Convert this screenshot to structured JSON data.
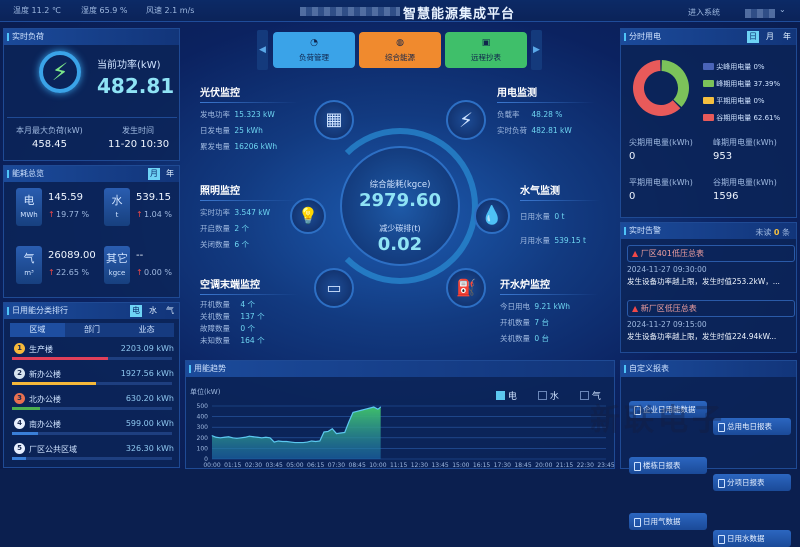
{
  "topbar": {
    "temp": "温度 11.2 ℃",
    "humidity": "湿度 65.9 %",
    "wind": "风速 2.1 m/s",
    "title": "智慧能源集成平台",
    "enter": "进入系统"
  },
  "realtime_load": {
    "title": "实时负荷",
    "power_label": "当前功率(kW)",
    "power": "482.81",
    "max_label": "本月最大负荷(kW)",
    "max": "458.45",
    "time_label": "发生时间",
    "time": "11-20 10:30"
  },
  "overview": {
    "title": "能耗总览",
    "toggles": [
      "月",
      "年"
    ],
    "active": "月",
    "items": [
      {
        "name": "电",
        "unit": "MWh",
        "value": "145.59",
        "change": "19.77 %"
      },
      {
        "name": "水",
        "unit": "t",
        "value": "539.15",
        "change": "1.04 %"
      },
      {
        "name": "气",
        "unit": "m³",
        "value": "26089.00",
        "change": "22.65 %"
      },
      {
        "name": "其它",
        "unit": "kgce",
        "value": "--",
        "change": "0.00 %"
      }
    ]
  },
  "ranking": {
    "title": "日用能分类排行",
    "toggles": [
      "电",
      "水",
      "气"
    ],
    "active": "电",
    "tabs": [
      "区域",
      "部门",
      "业态"
    ],
    "items": [
      {
        "rank": "1",
        "name": "生产楼",
        "value": "2203.09 kWh",
        "pct": 100,
        "color": "#e0405a"
      },
      {
        "rank": "2",
        "name": "新办公楼",
        "value": "1927.56 kWh",
        "pct": 87,
        "color": "#f5b83a"
      },
      {
        "rank": "3",
        "name": "北办公楼",
        "value": "630.20 kWh",
        "pct": 29,
        "color": "#4caf50"
      },
      {
        "rank": "4",
        "name": "南办公楼",
        "value": "599.00 kWh",
        "pct": 27,
        "color": "#3a7fd8"
      },
      {
        "rank": "5",
        "name": "厂区公共区域",
        "value": "326.30 kWh",
        "pct": 15,
        "color": "#3a7fd8"
      }
    ]
  },
  "nav": {
    "buttons": [
      {
        "label": "负荷管理",
        "color": "#3aa3e8",
        "icon": "gauge-icon"
      },
      {
        "label": "综合能源",
        "color": "#f08a2e",
        "icon": "globe-icon"
      },
      {
        "label": "远程抄表",
        "color": "#3fbf6a",
        "icon": "meter-icon"
      }
    ]
  },
  "pv": {
    "title": "光伏监控",
    "rows": [
      [
        "发电功率",
        "15.323 kW"
      ],
      [
        "日发电量",
        "25 kWh"
      ],
      [
        "累发电量",
        "16206 kWh"
      ]
    ]
  },
  "elec": {
    "title": "用电监测",
    "rows": [
      [
        "负载率",
        "48.28 %"
      ],
      [
        "实时负荷",
        "482.81 kW"
      ]
    ]
  },
  "light": {
    "title": "照明监控",
    "rows": [
      [
        "实时功率",
        "3.547 kW"
      ],
      [
        "开启数量",
        "2 个"
      ],
      [
        "关闭数量",
        "6 个"
      ]
    ]
  },
  "water": {
    "title": "水气监测",
    "rows": [
      [
        "日用水量",
        "0 t"
      ],
      [
        "月用水量",
        "539.15 t"
      ]
    ]
  },
  "ac": {
    "title": "空调末端监控",
    "rows": [
      [
        "开机数量",
        "4 个"
      ],
      [
        "关机数量",
        "137 个"
      ],
      [
        "故障数量",
        "0 个"
      ],
      [
        "未知数量",
        "164 个"
      ]
    ]
  },
  "boiler": {
    "title": "开水炉监控",
    "rows": [
      [
        "今日用电",
        "9.21 kWh"
      ],
      [
        "开机数量",
        "7 台"
      ],
      [
        "关机数量",
        "0 台"
      ]
    ]
  },
  "center": {
    "energy_label": "综合能耗(kgce)",
    "energy": "2979.60",
    "carbon_label": "减少碳排(t)",
    "carbon": "0.02"
  },
  "tou": {
    "title": "分时用电",
    "toggles": [
      "日",
      "月",
      "年"
    ],
    "active": "日",
    "legend": [
      {
        "name": "尖峰用电量",
        "pct": "0%",
        "value": 0,
        "color": "#4a64b8"
      },
      {
        "name": "峰期用电量",
        "pct": "37.39%",
        "value": 37.39,
        "color": "#7cc35a"
      },
      {
        "name": "平期用电量",
        "pct": "0%",
        "value": 0,
        "color": "#f5c040"
      },
      {
        "name": "谷期用电量",
        "pct": "62.61%",
        "value": 62.61,
        "color": "#e85a5a"
      }
    ],
    "stats": [
      [
        "尖期用电量(kWh)",
        "0"
      ],
      [
        "峰期用电量(kWh)",
        "953"
      ],
      [
        "平期用电量(kWh)",
        "0"
      ],
      [
        "谷期用电量(kWh)",
        "1596"
      ]
    ]
  },
  "alarm": {
    "title": "实时告警",
    "unread_pre": "未读",
    "unread": "0",
    "unread_post": "条",
    "items": [
      {
        "name": "厂区401低压总表",
        "time": "2024-11-27 09:30:00",
        "msg": "发生设备功率越上限，发生时值253.2kW，..."
      },
      {
        "name": "新厂区低压总表",
        "time": "2024-11-27 09:15:00",
        "msg": "发生设备功率越上限，发生时值224.94kW..."
      }
    ]
  },
  "reports": {
    "title": "自定义报表",
    "buttons": [
      "企业日用能数据",
      "总用电日报表",
      "楼栋日报表",
      "分项日报表",
      "日用气数据",
      "日用水数据"
    ]
  },
  "watermark": "新联电子",
  "chart_data": {
    "type": "area",
    "title": "用能趋势",
    "ylabel": "单位(kW)",
    "ylim": [
      0,
      500
    ],
    "yticks": [
      0,
      100,
      200,
      300,
      400,
      500
    ],
    "xticks": [
      "00:00",
      "01:15",
      "02:30",
      "03:45",
      "05:00",
      "06:15",
      "07:30",
      "08:45",
      "10:00",
      "11:15",
      "12:30",
      "13:45",
      "15:00",
      "16:15",
      "17:30",
      "18:45",
      "20:00",
      "21:15",
      "22:30",
      "23:45"
    ],
    "legend": [
      {
        "name": "电",
        "active": true,
        "color": "#5cc8f0"
      },
      {
        "name": "水",
        "active": false
      },
      {
        "name": "气",
        "active": false
      }
    ],
    "series": [
      {
        "name": "电",
        "x": [
          "00:00",
          "00:15",
          "00:30",
          "00:45",
          "01:00",
          "01:15",
          "01:30",
          "01:45",
          "02:00",
          "02:15",
          "02:30",
          "02:45",
          "03:00",
          "03:15",
          "03:30",
          "03:45",
          "04:00",
          "04:15",
          "04:30",
          "04:45",
          "05:00",
          "05:15",
          "05:30",
          "05:45",
          "06:00",
          "06:15",
          "06:30",
          "06:45",
          "07:00",
          "07:15",
          "07:30",
          "07:45",
          "08:00",
          "08:15",
          "08:30",
          "08:45",
          "09:00",
          "09:15",
          "09:30",
          "09:45",
          "10:00",
          "10:10"
        ],
        "values": [
          220,
          205,
          200,
          205,
          210,
          200,
          195,
          200,
          205,
          215,
          210,
          205,
          200,
          205,
          200,
          160,
          170,
          165,
          165,
          160,
          155,
          155,
          155,
          160,
          170,
          165,
          170,
          255,
          260,
          285,
          240,
          245,
          250,
          350,
          440,
          450,
          460,
          470,
          480,
          490,
          470,
          490
        ]
      }
    ],
    "grid": true
  }
}
